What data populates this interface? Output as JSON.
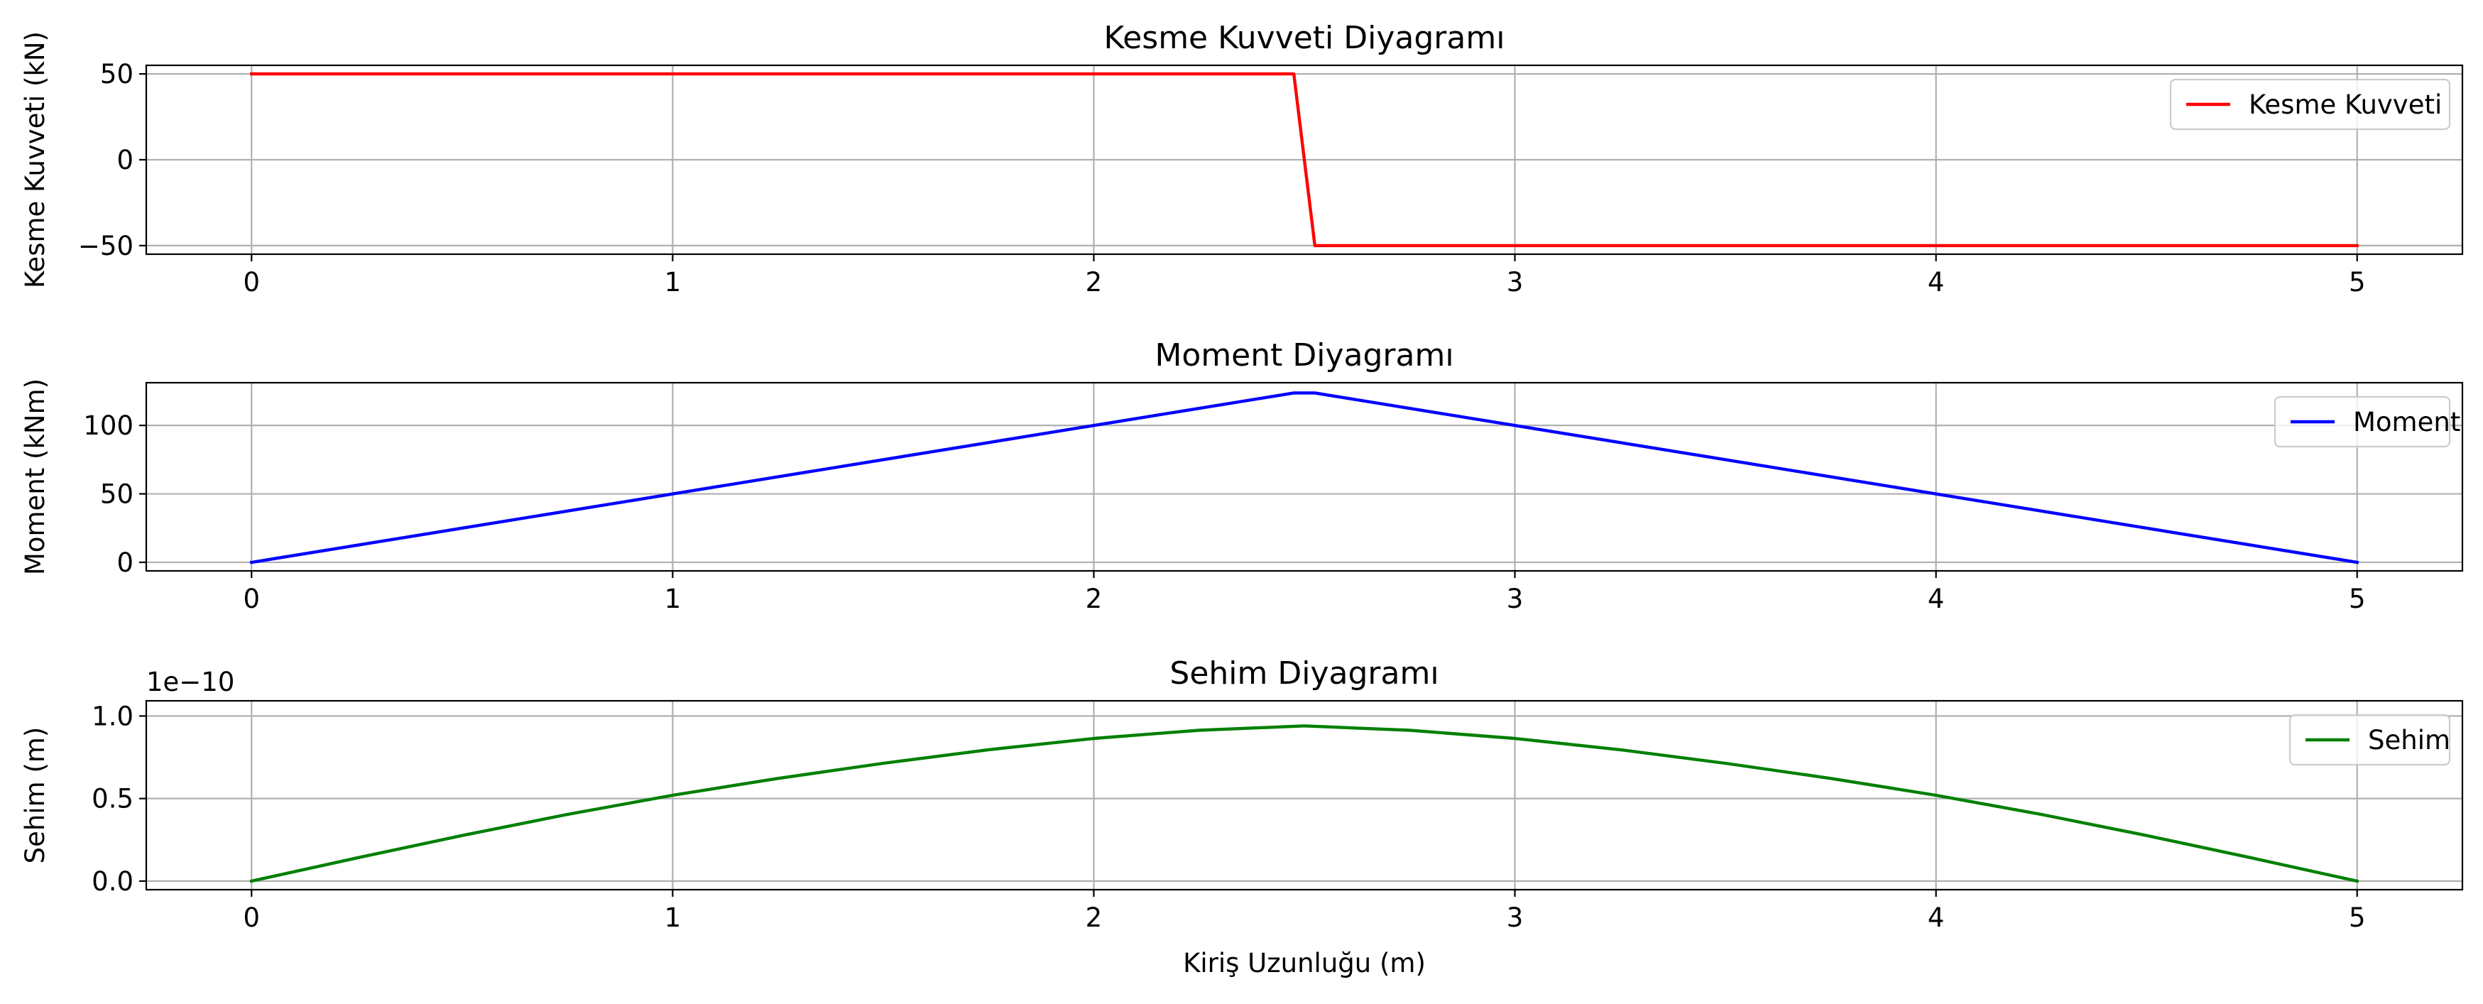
{
  "chart_data": [
    {
      "type": "line",
      "title": "Kesme Kuvveti Diyagramı",
      "xlabel": "",
      "ylabel": "Kesme Kuvveti (kN)",
      "xlim": [
        -0.25,
        5.25
      ],
      "ylim": [
        -55,
        55
      ],
      "xticks": [
        0,
        1,
        2,
        3,
        4,
        5
      ],
      "yticks": [
        -50,
        0,
        50
      ],
      "ytick_labels": [
        "−50",
        "0",
        "50"
      ],
      "grid": true,
      "legend_position": "top-right",
      "offset_text": "",
      "series": [
        {
          "name": "Kesme Kuvveti",
          "color": "#ff0000",
          "x": [
            0,
            2.475,
            2.525,
            5
          ],
          "y": [
            50,
            50,
            -50,
            -50
          ]
        }
      ]
    },
    {
      "type": "line",
      "title": "Moment Diyagramı",
      "xlabel": "",
      "ylabel": "Moment (kNm)",
      "xlim": [
        -0.25,
        5.25
      ],
      "ylim": [
        -6.25,
        131.2
      ],
      "xticks": [
        0,
        1,
        2,
        3,
        4,
        5
      ],
      "yticks": [
        0,
        50,
        100
      ],
      "ytick_labels": [
        "0",
        "50",
        "100"
      ],
      "grid": true,
      "legend_position": "top-right",
      "offset_text": "",
      "series": [
        {
          "name": "Moment",
          "color": "#0000ff",
          "x": [
            0,
            2.475,
            2.525,
            5
          ],
          "y": [
            0,
            123.75,
            123.75,
            0
          ]
        }
      ]
    },
    {
      "type": "line",
      "title": "Sehim Diyagramı",
      "xlabel": "Kiriş Uzunluğu (m)",
      "ylabel": "Sehim (m)",
      "xlim": [
        -0.25,
        5.25
      ],
      "ylim": [
        -0.052,
        1.092
      ],
      "xticks": [
        0,
        1,
        2,
        3,
        4,
        5
      ],
      "yticks": [
        0,
        0.5,
        1.0
      ],
      "ytick_labels": [
        "0.0",
        "0.5",
        "1.0"
      ],
      "grid": true,
      "legend_position": "top-right",
      "offset_text": "1e−10",
      "series": [
        {
          "name": "Sehim",
          "color": "#008000",
          "x": [
            0,
            0.25,
            0.5,
            0.75,
            1.0,
            1.25,
            1.5,
            1.75,
            2.0,
            2.25,
            2.5,
            2.75,
            3.0,
            3.25,
            3.5,
            3.75,
            4.0,
            4.25,
            4.5,
            4.75,
            5.0
          ],
          "y": [
            0,
            0.1403,
            0.2762,
            0.4039,
            0.5198,
            0.6219,
            0.7136,
            0.7957,
            0.864,
            0.9137,
            0.94,
            0.9137,
            0.864,
            0.7957,
            0.7136,
            0.6219,
            0.5198,
            0.4039,
            0.2762,
            0.1403,
            0
          ]
        }
      ]
    }
  ]
}
